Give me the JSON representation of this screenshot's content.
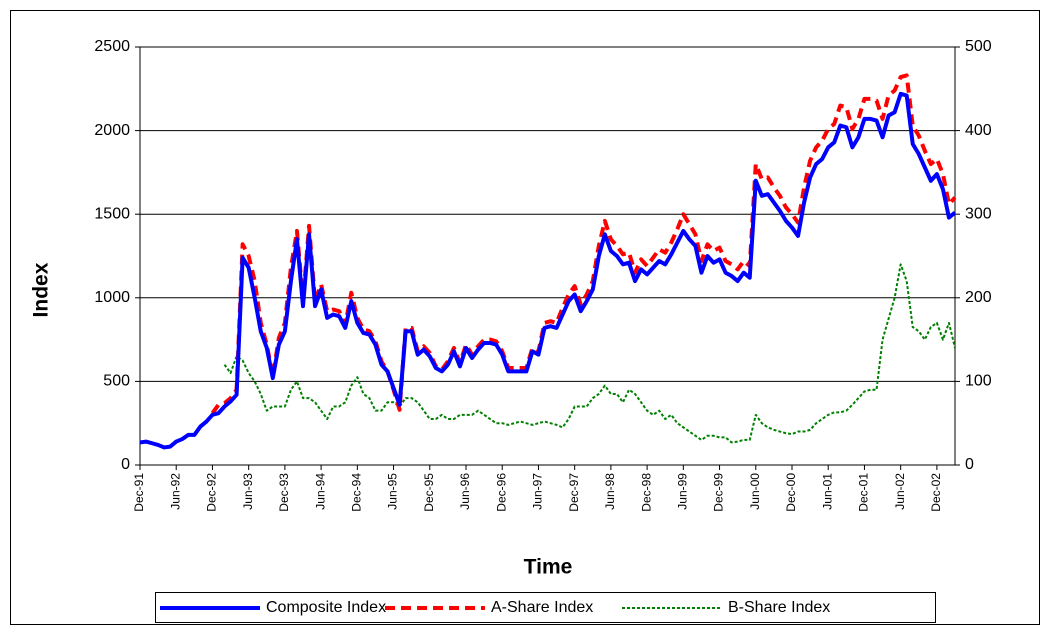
{
  "chart_data": {
    "type": "line",
    "x_label": "Time",
    "y_label": "Index",
    "categories": [
      "Dec-91",
      null,
      null,
      null,
      null,
      null,
      "Jun-92",
      null,
      null,
      null,
      null,
      null,
      "Dec-92",
      null,
      null,
      null,
      null,
      null,
      "Jun-93",
      null,
      null,
      null,
      null,
      null,
      "Dec-93",
      null,
      null,
      null,
      null,
      null,
      "Jun-94",
      null,
      null,
      null,
      null,
      null,
      "Dec-94",
      null,
      null,
      null,
      null,
      null,
      "Jun-95",
      null,
      null,
      null,
      null,
      null,
      "Dec-95",
      null,
      null,
      null,
      null,
      null,
      "Jun-96",
      null,
      null,
      null,
      null,
      null,
      "Dec-96",
      null,
      null,
      null,
      null,
      null,
      "Jun-97",
      null,
      null,
      null,
      null,
      null,
      "Dec-97",
      null,
      null,
      null,
      null,
      null,
      "Jun-98",
      null,
      null,
      null,
      null,
      null,
      "Dec-98",
      null,
      null,
      null,
      null,
      null,
      "Jun-99",
      null,
      null,
      null,
      null,
      null,
      "Dec-99",
      null,
      null,
      null,
      null,
      null,
      "Jun-00",
      null,
      null,
      null,
      null,
      null,
      "Dec-00",
      null,
      null,
      null,
      null,
      null,
      "Jun-01",
      null,
      null,
      null,
      null,
      null,
      "Dec-01",
      null,
      null,
      null,
      null,
      null,
      "Jun-02",
      null,
      null,
      null,
      null,
      null,
      "Dec-02",
      null,
      null,
      null
    ],
    "series": [
      {
        "name": "Composite Index",
        "color": "#0000ff",
        "style": "solid",
        "values": [
          135,
          140,
          130,
          120,
          105,
          110,
          140,
          155,
          180,
          180,
          230,
          260,
          300,
          310,
          350,
          380,
          420,
          1240,
          1180,
          1000,
          800,
          700,
          520,
          720,
          800,
          1100,
          1350,
          950,
          1380,
          950,
          1050,
          880,
          900,
          890,
          820,
          980,
          850,
          790,
          780,
          720,
          600,
          560,
          460,
          360,
          800,
          800,
          660,
          690,
          650,
          580,
          560,
          600,
          680,
          590,
          700,
          640,
          690,
          730,
          730,
          720,
          660,
          560,
          560,
          560,
          560,
          680,
          660,
          820,
          830,
          820,
          900,
          980,
          1020,
          920,
          980,
          1050,
          1250,
          1380,
          1280,
          1250,
          1200,
          1210,
          1100,
          1170,
          1140,
          1180,
          1220,
          1200,
          1260,
          1330,
          1400,
          1350,
          1310,
          1150,
          1250,
          1210,
          1230,
          1150,
          1130,
          1100,
          1150,
          1120,
          1700,
          1610,
          1620,
          1570,
          1520,
          1460,
          1420,
          1370,
          1570,
          1720,
          1800,
          1830,
          1900,
          1930,
          2030,
          2020,
          1900,
          1960,
          2070,
          2070,
          2060,
          1960,
          2090,
          2110,
          2220,
          2210,
          1920,
          1860,
          1780,
          1700,
          1740,
          1650,
          1480,
          1510
        ]
      },
      {
        "name": "A-Share Index",
        "color": "#ff0000",
        "style": "dashed",
        "values": [
          null,
          null,
          null,
          null,
          null,
          null,
          null,
          null,
          null,
          null,
          null,
          null,
          310,
          360,
          370,
          400,
          450,
          1320,
          1250,
          1100,
          850,
          720,
          530,
          760,
          850,
          1180,
          1400,
          980,
          1430,
          980,
          1080,
          920,
          930,
          920,
          840,
          1030,
          880,
          810,
          800,
          740,
          620,
          560,
          450,
          330,
          820,
          820,
          680,
          710,
          670,
          590,
          570,
          620,
          700,
          610,
          720,
          660,
          710,
          750,
          750,
          740,
          680,
          580,
          580,
          580,
          580,
          700,
          680,
          850,
          860,
          850,
          940,
          1020,
          1070,
          960,
          1020,
          1100,
          1310,
          1460,
          1350,
          1310,
          1260,
          1270,
          1150,
          1230,
          1190,
          1240,
          1290,
          1270,
          1330,
          1410,
          1500,
          1440,
          1380,
          1220,
          1320,
          1280,
          1300,
          1220,
          1200,
          1170,
          1220,
          1190,
          1800,
          1710,
          1720,
          1660,
          1610,
          1540,
          1500,
          1450,
          1660,
          1820,
          1900,
          1940,
          2010,
          2040,
          2150,
          2140,
          2010,
          2070,
          2190,
          2190,
          2180,
          2070,
          2210,
          2240,
          2320,
          2330,
          2030,
          1970,
          1880,
          1800,
          1830,
          1740,
          1560,
          1600
        ]
      },
      {
        "name": "B-Share Index",
        "color": "#008000",
        "style": "dotted",
        "axis": "y2",
        "values": [
          null,
          null,
          null,
          null,
          null,
          null,
          null,
          null,
          null,
          null,
          null,
          null,
          null,
          null,
          120,
          110,
          130,
          125,
          110,
          100,
          85,
          65,
          70,
          70,
          70,
          90,
          100,
          80,
          80,
          75,
          65,
          55,
          70,
          70,
          75,
          95,
          105,
          85,
          80,
          65,
          65,
          75,
          75,
          70,
          80,
          80,
          75,
          65,
          55,
          55,
          60,
          55,
          55,
          60,
          60,
          60,
          65,
          60,
          55,
          50,
          50,
          48,
          50,
          52,
          50,
          48,
          50,
          52,
          50,
          48,
          45,
          55,
          70,
          70,
          70,
          80,
          85,
          95,
          85,
          85,
          75,
          90,
          85,
          75,
          65,
          60,
          65,
          55,
          60,
          50,
          45,
          40,
          35,
          30,
          35,
          35,
          33,
          33,
          27,
          28,
          30,
          30,
          60,
          50,
          45,
          42,
          40,
          38,
          37,
          40,
          40,
          42,
          50,
          55,
          60,
          63,
          63,
          65,
          72,
          80,
          88,
          90,
          90,
          150,
          175,
          200,
          240,
          220,
          165,
          160,
          150,
          165,
          170,
          150,
          170,
          140
        ]
      }
    ],
    "ylim": [
      0,
      2500
    ],
    "yticks": [
      0,
      500,
      1000,
      1500,
      2000,
      2500
    ],
    "y2lim": [
      0,
      500
    ],
    "y2ticks": [
      0,
      100,
      200,
      300,
      400,
      500
    ],
    "grid": true,
    "legend": "bottom"
  }
}
